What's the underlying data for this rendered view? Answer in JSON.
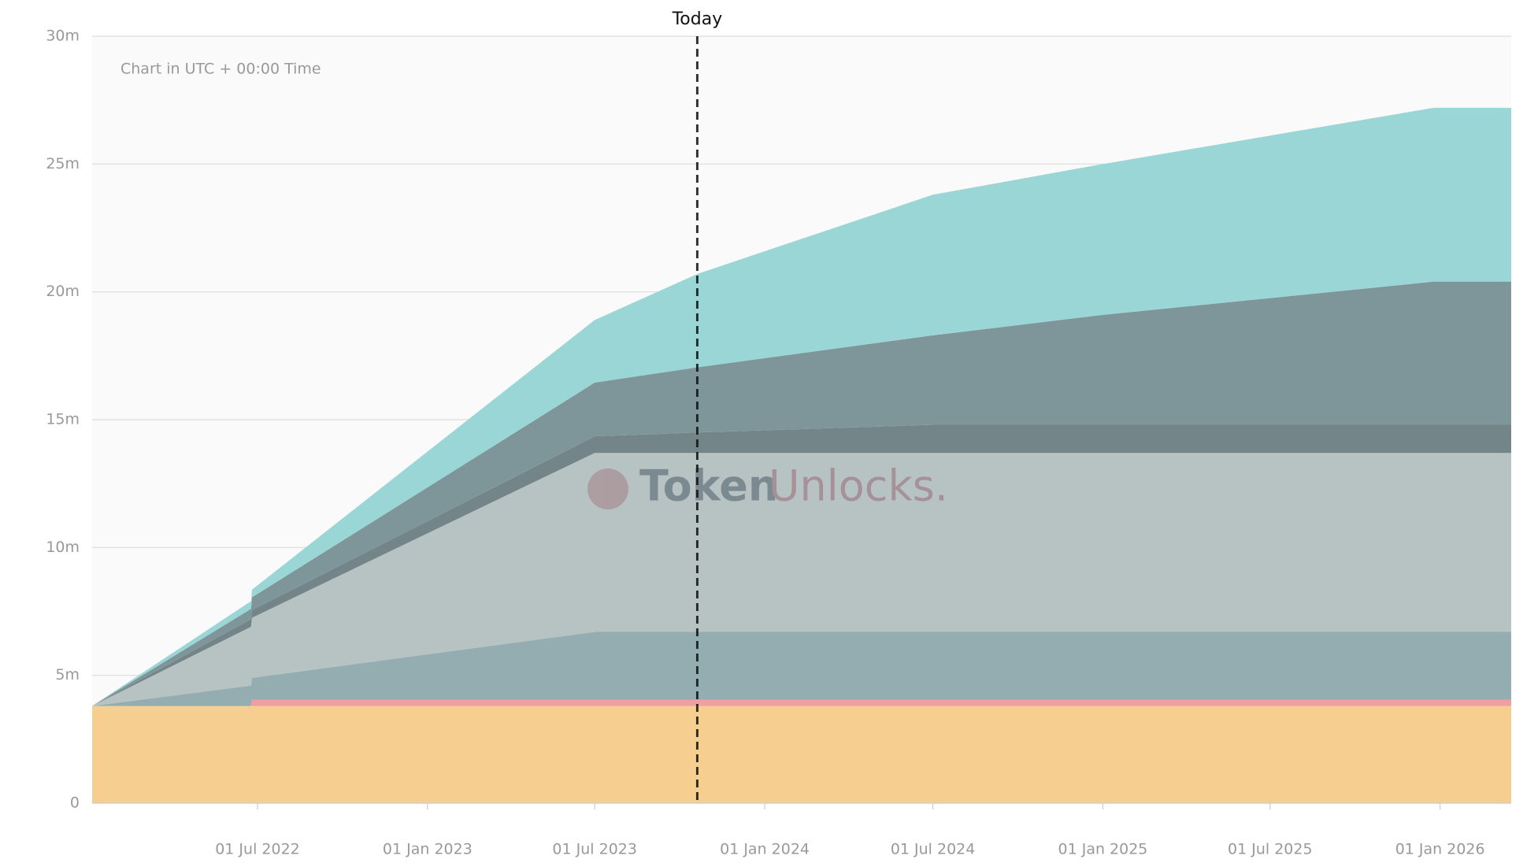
{
  "chart_data": {
    "type": "stacked-area",
    "annotation": "Chart in UTC + 00:00 Time",
    "watermark": [
      "Token",
      "Unlocks."
    ],
    "today": {
      "label": "Today",
      "x": "2023-10-20"
    },
    "x": [
      "2022-01-03",
      "2022-06-24",
      "2022-06-25",
      "2023-07-01",
      "2023-10-20",
      "2024-07-01",
      "2025-01-01",
      "2025-12-25",
      "2026-03-19"
    ],
    "series": [
      {
        "color": "#f6cc8c",
        "values": [
          3.8,
          3.8,
          3.8,
          3.8,
          3.8,
          3.8,
          3.8,
          3.8,
          3.8
        ]
      },
      {
        "color": "#ee9c9c",
        "values": [
          0,
          0,
          0.25,
          0.25,
          0.25,
          0.25,
          0.25,
          0.25,
          0.25
        ]
      },
      {
        "color": "#90aaae",
        "values": [
          0,
          0.8,
          0.85,
          2.65,
          2.65,
          2.65,
          2.65,
          2.65,
          2.65
        ]
      },
      {
        "color": "#b5c1c0",
        "values": [
          0,
          2.3,
          2.35,
          7.0,
          7.0,
          7.0,
          7.0,
          7.0,
          7.0
        ]
      },
      {
        "color": "#6e8184",
        "values": [
          0,
          0.3,
          0.3,
          0.65,
          0.8,
          1.1,
          1.1,
          1.1,
          1.1
        ]
      },
      {
        "color": "#7a9397",
        "values": [
          0,
          0.4,
          0.5,
          2.1,
          2.55,
          3.5,
          4.3,
          5.6,
          5.6
        ]
      },
      {
        "color": "#97d5d5",
        "values": [
          0,
          0.3,
          0.3,
          2.45,
          3.65,
          5.5,
          5.9,
          6.8,
          6.8
        ]
      }
    ],
    "xlim": [
      "2022-01-03",
      "2026-03-19"
    ],
    "xticks": [
      {
        "value": "2022-07-01",
        "label": "01 Jul 2022"
      },
      {
        "value": "2023-01-01",
        "label": "01 Jan 2023"
      },
      {
        "value": "2023-07-01",
        "label": "01 Jul 2023"
      },
      {
        "value": "2024-01-01",
        "label": "01 Jan 2024"
      },
      {
        "value": "2024-07-01",
        "label": "01 Jul 2024"
      },
      {
        "value": "2025-01-01",
        "label": "01 Jan 2025"
      },
      {
        "value": "2025-07-01",
        "label": "01 Jul 2025"
      },
      {
        "value": "2026-01-01",
        "label": "01 Jan 2026"
      }
    ],
    "ylim": [
      0,
      30
    ],
    "yticks": [
      0,
      {
        "value": 5,
        "label": "5m"
      },
      {
        "value": 10,
        "label": "10m"
      },
      {
        "value": 15,
        "label": "15m"
      },
      {
        "value": 20,
        "label": "20m"
      },
      {
        "value": 25,
        "label": "25m"
      },
      {
        "value": 30,
        "label": "30m"
      }
    ],
    "grid": true
  }
}
